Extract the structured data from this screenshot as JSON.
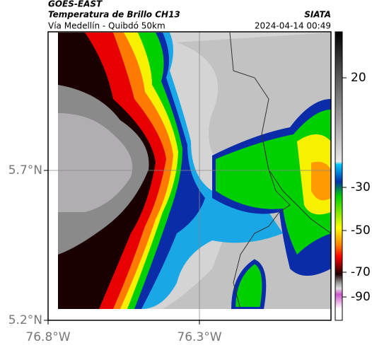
{
  "header": {
    "source": "GOES-EAST",
    "title": "Temperatura de Brillo CH13",
    "subtitle": "Vía Medellín - Quibdó 50km",
    "org": "SIATA",
    "datetime": "2024-04-14 00:49"
  },
  "map": {
    "lat_labels": [
      "5.7°N",
      "5.2°N"
    ],
    "lon_labels": [
      "76.8°W",
      "76.3°W"
    ]
  },
  "colorbar": {
    "labels": [
      "20",
      "-30",
      "-50",
      "-70",
      "-90"
    ]
  }
}
